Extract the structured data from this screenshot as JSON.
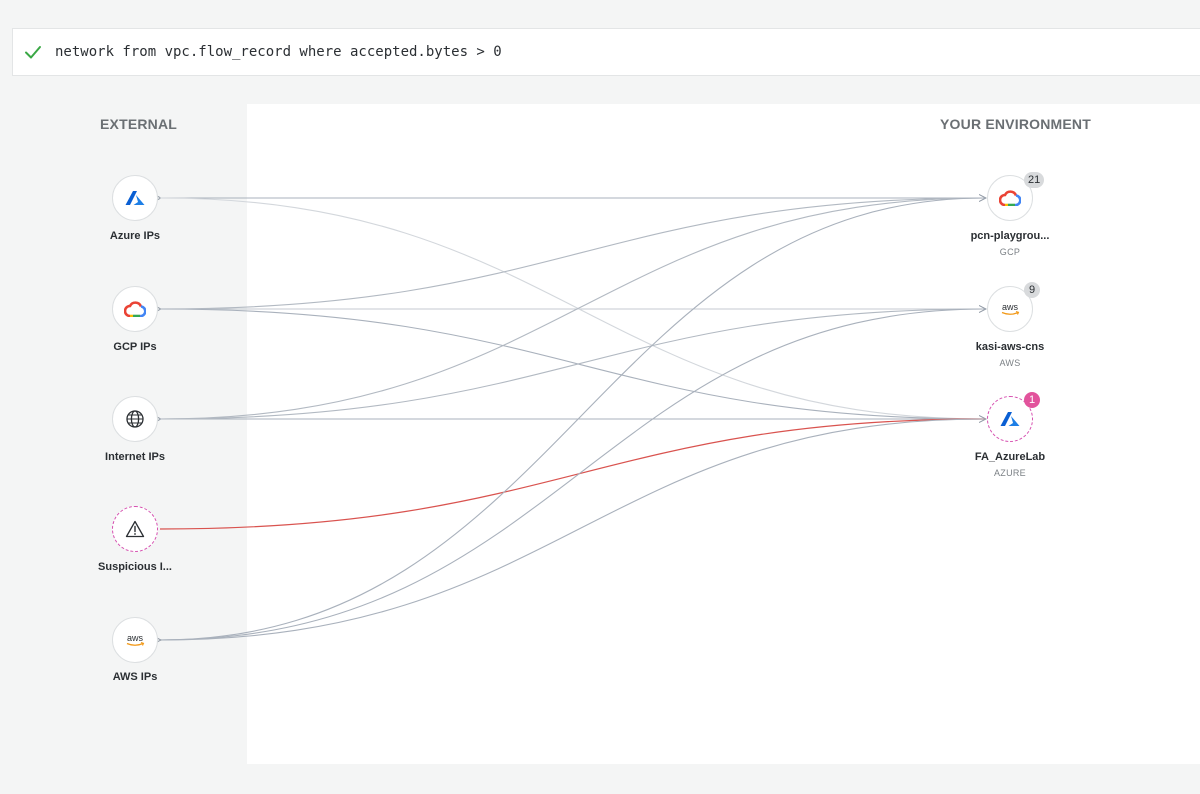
{
  "query": {
    "status": "valid",
    "text": "network from vpc.flow_record where accepted.bytes > 0"
  },
  "sections": {
    "external": "EXTERNAL",
    "environment": "YOUR ENVIRONMENT"
  },
  "external_nodes": [
    {
      "id": "azure-ips",
      "label": "Azure IPs",
      "icon": "azure-icon"
    },
    {
      "id": "gcp-ips",
      "label": "GCP IPs",
      "icon": "gcp-icon"
    },
    {
      "id": "internet-ips",
      "label": "Internet IPs",
      "icon": "globe-icon"
    },
    {
      "id": "suspicious-ips",
      "label": "Suspicious I...",
      "icon": "warning-icon"
    },
    {
      "id": "aws-ips",
      "label": "AWS IPs",
      "icon": "aws-icon"
    }
  ],
  "environment_nodes": [
    {
      "id": "pcn-playground",
      "label": "pcn-playgrou...",
      "sub": "GCP",
      "icon": "gcp-icon",
      "badge": "21"
    },
    {
      "id": "kasi-aws-cns",
      "label": "kasi-aws-cns",
      "sub": "AWS",
      "icon": "aws-icon",
      "badge": "9"
    },
    {
      "id": "fa-azurelab",
      "label": "FA_AzureLab",
      "sub": "AZURE",
      "icon": "azure-icon",
      "badge": "1"
    }
  ],
  "colors": {
    "link": "#a9b1bc",
    "link_faint": "#d3d7dc",
    "suspicious_link": "#d9534f",
    "check": "#3aa845",
    "suspicious_ring": "#d64fb0",
    "badge_alert": "#e2539c"
  }
}
